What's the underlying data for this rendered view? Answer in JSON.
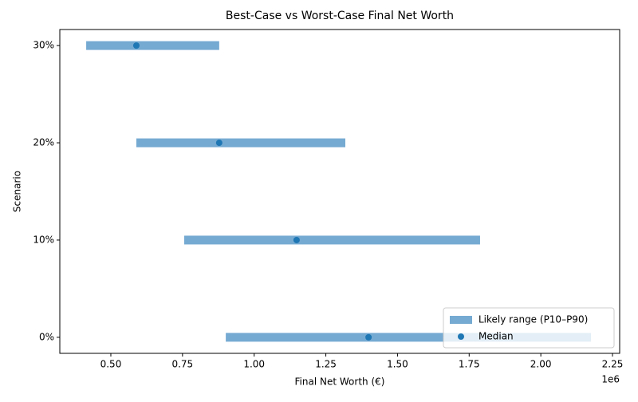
{
  "chart_data": {
    "type": "range",
    "title": "Best-Case vs Worst-Case Final Net Worth",
    "xlabel": "Final Net Worth (€)",
    "ylabel": "Scenario",
    "x_offset_label": "1e6",
    "categories": [
      "0%",
      "10%",
      "20%",
      "30%"
    ],
    "series": [
      {
        "name": "Likely range (P10–P90)",
        "color": "#75aad2",
        "low": [
          901000,
          756000,
          589000,
          414000
        ],
        "high": [
          2175000,
          1788000,
          1318000,
          878000
        ]
      },
      {
        "name": "Median",
        "color": "#1f77b4",
        "values": [
          1399000,
          1148000,
          878000,
          589000
        ]
      }
    ],
    "xlim": [
      322000,
      2275000
    ],
    "xticks": [
      {
        "value": 500000,
        "label": "0.50"
      },
      {
        "value": 750000,
        "label": "0.75"
      },
      {
        "value": 1000000,
        "label": "1.00"
      },
      {
        "value": 1250000,
        "label": "1.25"
      },
      {
        "value": 1500000,
        "label": "1.50"
      },
      {
        "value": 1750000,
        "label": "1.75"
      },
      {
        "value": 2000000,
        "label": "2.00"
      },
      {
        "value": 2250000,
        "label": "2.25"
      }
    ],
    "legend": "lower right",
    "grid": false
  }
}
